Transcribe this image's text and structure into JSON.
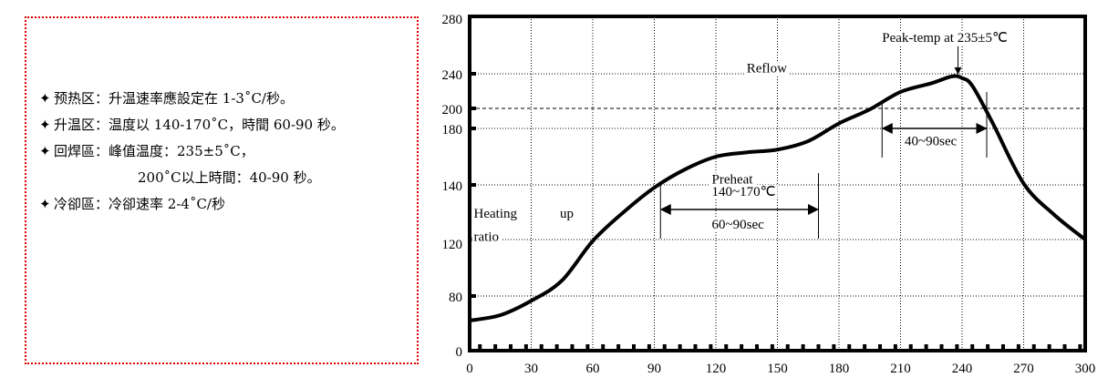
{
  "notes": {
    "bullet": "✦",
    "lines": [
      {
        "label": "预热区：",
        "text": "升温速率應設定在 1-3˚C/秒。"
      },
      {
        "label": "升温区：",
        "text": "温度以 140-170˚C，時間 60-90 秒。"
      },
      {
        "label": "回焊區：",
        "text": "峰值温度：235±5˚C，"
      },
      {
        "label": "",
        "text": "200˚C以上時間：40-90 秒。"
      },
      {
        "label": "冷卻區：",
        "text": "冷卻速率 2-4˚C/秒"
      }
    ],
    "border_color": "#e00000"
  },
  "chart_data": {
    "type": "line",
    "title": "",
    "xlabel": "",
    "ylabel": "",
    "xlim": [
      0,
      300
    ],
    "ylim": [
      0,
      280
    ],
    "x_ticks": [
      "0",
      "30",
      "60",
      "90",
      "120",
      "150",
      "180",
      "210",
      "240",
      "270",
      "300"
    ],
    "y_ticks": [
      "0",
      "80",
      "120",
      "140",
      "180",
      "200",
      "240",
      "280"
    ],
    "grid": true,
    "series": [
      {
        "x": [
          0,
          15,
          30,
          45,
          60,
          75,
          90,
          105,
          120,
          135,
          150,
          165,
          180,
          195,
          210,
          225,
          235,
          240,
          245,
          255,
          270,
          285,
          300
        ],
        "y": [
          44,
          52,
          73,
          91,
          119,
          130,
          139,
          151,
          160,
          163,
          165,
          171,
          185,
          199,
          219,
          229,
          237,
          235,
          226,
          185,
          141,
          129,
          120
        ]
      }
    ],
    "reference_line": {
      "y": 200,
      "style": "dashed"
    },
    "annotations": [
      {
        "text": "Heating",
        "x": 2,
        "y": 128
      },
      {
        "text": "up",
        "x": 44,
        "y": 128
      },
      {
        "text": "ratio",
        "x": 2,
        "y": 119
      },
      {
        "text": "Preheat",
        "x": 118,
        "y": 141
      },
      {
        "text": "140~170℃",
        "x": 118,
        "y": 136
      },
      {
        "text": "60~90sec",
        "x": 118,
        "y": 124
      },
      {
        "text": "Reflow",
        "x": 135,
        "y": 241
      },
      {
        "text": "40~90sec",
        "x": 212,
        "y": 168
      },
      {
        "text": "Peak-temp at 235±5℃",
        "x": 201,
        "y": 263
      }
    ],
    "ranges": [
      {
        "label": "60~90sec",
        "x_start": 93,
        "x_end": 170,
        "y": 131
      },
      {
        "label": "40~90sec",
        "x_start": 201,
        "x_end": 252,
        "y": 180
      }
    ],
    "peak_arrow": {
      "x": 238,
      "y_from": 263,
      "y_to": 238
    }
  }
}
